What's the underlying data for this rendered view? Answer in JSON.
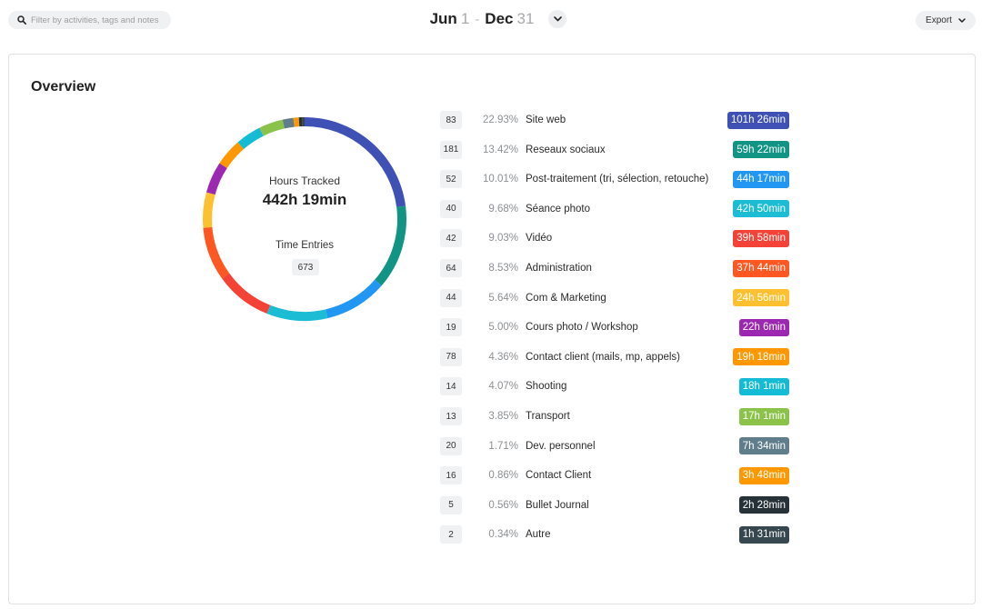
{
  "search": {
    "placeholder": "Filter by activities, tags and notes",
    "icon": "search-icon"
  },
  "date_range": {
    "start_month": "Jun",
    "start_day": "1",
    "separator": "-",
    "end_month": "Dec",
    "end_day": "31"
  },
  "export": {
    "label": "Export"
  },
  "overview": {
    "title": "Overview",
    "hours_tracked_label": "Hours Tracked",
    "hours_tracked_value": "442h 19min",
    "time_entries_label": "Time Entries",
    "time_entries_value": "673"
  },
  "chart_data": {
    "type": "pie",
    "categories": [
      "Site web",
      "Reseaux sociaux",
      "Post-traitement (tri, sélection, retouche)",
      "Séance photo",
      "Vidéo",
      "Administration",
      "Com & Marketing",
      "Cours photo / Workshop",
      "Contact client (mails, mp, appels)",
      "Shooting",
      "Transport",
      "Dev. personnel",
      "Contact Client",
      "Bullet Journal",
      "Autre"
    ],
    "values": [
      22.93,
      13.42,
      10.01,
      9.68,
      9.03,
      8.53,
      5.64,
      5.0,
      4.36,
      4.07,
      3.85,
      1.71,
      0.86,
      0.56,
      0.34
    ],
    "colors": [
      "#3f51b5",
      "#129485",
      "#2196f3",
      "#1bbcd4",
      "#f44336",
      "#fe5722",
      "#fdc02f",
      "#9c27b0",
      "#ff9800",
      "#13bcd4",
      "#8bc34a",
      "#607d8b",
      "#fe9800",
      "#263238",
      "#37474f"
    ]
  },
  "activities": [
    {
      "count": "83",
      "percent": "22.93%",
      "name": "Site web",
      "duration": "101h 26min",
      "color": "#3f51b5"
    },
    {
      "count": "181",
      "percent": "13.42%",
      "name": "Reseaux sociaux",
      "duration": "59h 22min",
      "color": "#129485"
    },
    {
      "count": "52",
      "percent": "10.01%",
      "name": "Post-traitement (tri, sélection, retouche)",
      "duration": "44h 17min",
      "color": "#2196f3"
    },
    {
      "count": "40",
      "percent": "9.68%",
      "name": "Séance photo",
      "duration": "42h 50min",
      "color": "#1bbcd4"
    },
    {
      "count": "42",
      "percent": "9.03%",
      "name": "Vidéo",
      "duration": "39h 58min",
      "color": "#f44336"
    },
    {
      "count": "64",
      "percent": "8.53%",
      "name": "Administration",
      "duration": "37h 44min",
      "color": "#fe5722"
    },
    {
      "count": "44",
      "percent": "5.64%",
      "name": "Com & Marketing",
      "duration": "24h 56min",
      "color": "#fdc02f"
    },
    {
      "count": "19",
      "percent": "5.00%",
      "name": "Cours photo / Workshop",
      "duration": "22h 6min",
      "color": "#9c27b0"
    },
    {
      "count": "78",
      "percent": "4.36%",
      "name": "Contact client (mails, mp, appels)",
      "duration": "19h 18min",
      "color": "#ff9800"
    },
    {
      "count": "14",
      "percent": "4.07%",
      "name": "Shooting",
      "duration": "18h 1min",
      "color": "#13bcd4"
    },
    {
      "count": "13",
      "percent": "3.85%",
      "name": "Transport",
      "duration": "17h 1min",
      "color": "#8bc34a"
    },
    {
      "count": "20",
      "percent": "1.71%",
      "name": "Dev. personnel",
      "duration": "7h 34min",
      "color": "#607d8b"
    },
    {
      "count": "16",
      "percent": "0.86%",
      "name": "Contact Client",
      "duration": "3h 48min",
      "color": "#fe9800"
    },
    {
      "count": "5",
      "percent": "0.56%",
      "name": "Bullet Journal",
      "duration": "2h 28min",
      "color": "#263238"
    },
    {
      "count": "2",
      "percent": "0.34%",
      "name": "Autre",
      "duration": "1h 31min",
      "color": "#37474f"
    }
  ]
}
